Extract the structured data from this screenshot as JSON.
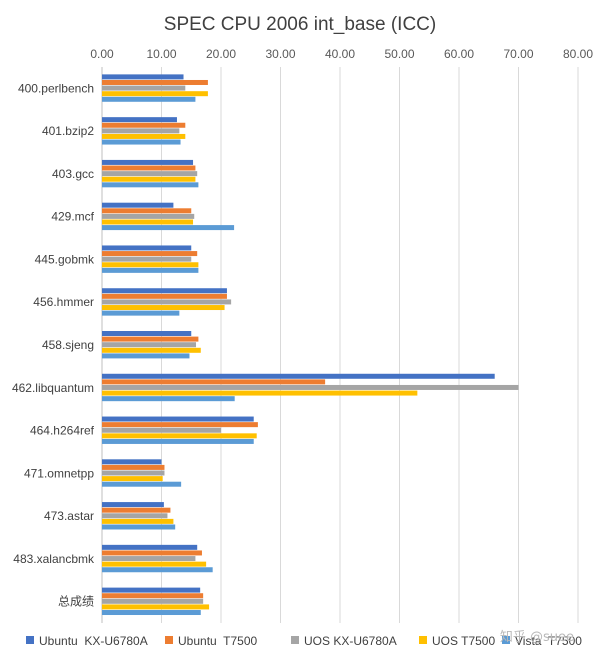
{
  "chart_data": {
    "type": "bar",
    "orientation": "horizontal",
    "title": "SPEC CPU 2006 int_base (ICC)",
    "xlim": [
      0,
      80
    ],
    "ticks": [
      "0.00",
      "10.00",
      "20.00",
      "30.00",
      "40.00",
      "50.00",
      "60.00",
      "70.00",
      "80.00"
    ],
    "grid": true,
    "legend_position": "bottom",
    "categories": [
      "400.perlbench",
      "401.bzip2",
      "403.gcc",
      "429.mcf",
      "445.gobmk",
      "456.hmmer",
      "458.sjeng",
      "462.libquantum",
      "464.h264ref",
      "471.omnetpp",
      "473.astar",
      "483.xalancbmk",
      "总成绩"
    ],
    "series": [
      {
        "name": "Ubuntu  KX-U6780A",
        "color": "#4472C4",
        "values": [
          13.7,
          12.6,
          15.3,
          12.0,
          15.0,
          21.0,
          15.0,
          66.0,
          25.5,
          10.0,
          10.4,
          16.0,
          16.5
        ]
      },
      {
        "name": "Ubuntu  T7500",
        "color": "#ED7D31",
        "values": [
          17.8,
          14.0,
          15.7,
          15.0,
          16.0,
          21.0,
          16.2,
          37.5,
          26.2,
          10.5,
          11.5,
          16.8,
          17.0
        ]
      },
      {
        "name": "UOS KX-U6780A",
        "color": "#A5A5A5",
        "values": [
          14.0,
          13.0,
          16.0,
          15.5,
          15.0,
          21.7,
          15.8,
          70.0,
          20.0,
          10.5,
          11.0,
          15.7,
          17.0
        ]
      },
      {
        "name": "UOS T7500",
        "color": "#FFC000",
        "values": [
          17.8,
          14.0,
          15.7,
          15.3,
          16.2,
          20.6,
          16.6,
          53.0,
          26.0,
          10.2,
          12.0,
          17.5,
          18.0
        ]
      },
      {
        "name": "Vista  T7500",
        "color": "#5B9BD5",
        "values": [
          15.7,
          13.2,
          16.2,
          22.2,
          16.2,
          13.0,
          14.7,
          22.3,
          25.5,
          13.3,
          12.3,
          18.6,
          16.6
        ]
      }
    ]
  },
  "watermark": "知乎 @suee"
}
